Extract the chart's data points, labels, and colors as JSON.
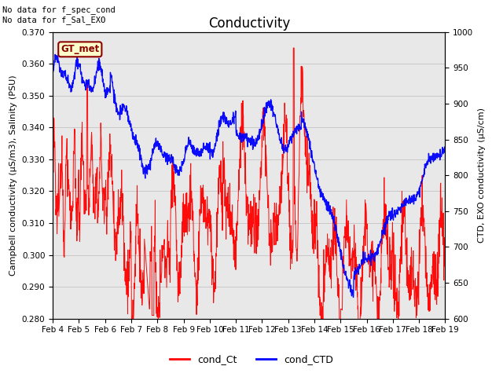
{
  "title": "Conductivity",
  "ylabel_left": "Campbell conductivity (μS/m3), Salinity (PSU)",
  "ylabel_right": "CTD, EXO conductivity (μS/cm)",
  "ylim_left": [
    0.28,
    0.37
  ],
  "ylim_right": [
    600,
    1000
  ],
  "yticks_left": [
    0.28,
    0.29,
    0.3,
    0.31,
    0.32,
    0.33,
    0.34,
    0.35,
    0.36,
    0.37
  ],
  "yticks_right": [
    600,
    650,
    700,
    750,
    800,
    850,
    900,
    950,
    1000
  ],
  "xtick_labels": [
    "Feb 4",
    "Feb 5",
    "Feb 6",
    "Feb 7",
    "Feb 8",
    "Feb 9",
    "Feb 10",
    "Feb 11",
    "Feb 12",
    "Feb 13",
    "Feb 14",
    "Feb 15",
    "Feb 16",
    "Feb 17",
    "Feb 18",
    "Feb 19"
  ],
  "annotation_top": "No data for f_spec_cond\nNo data for f_Sal_EXO",
  "legend_label1": "cond_Ct",
  "legend_label2": "cond_CTD",
  "legend_color1": "red",
  "legend_color2": "blue",
  "box_label": "GT_met",
  "box_facecolor": "#FFFFCC",
  "box_edgecolor": "#8B0000",
  "box_textcolor": "#8B0000",
  "grid_color": "#C8C8C8",
  "bg_color": "#E8E8E8",
  "title_fontsize": 12,
  "axis_fontsize": 8,
  "tick_fontsize": 7.5,
  "annotation_fontsize": 7.5
}
